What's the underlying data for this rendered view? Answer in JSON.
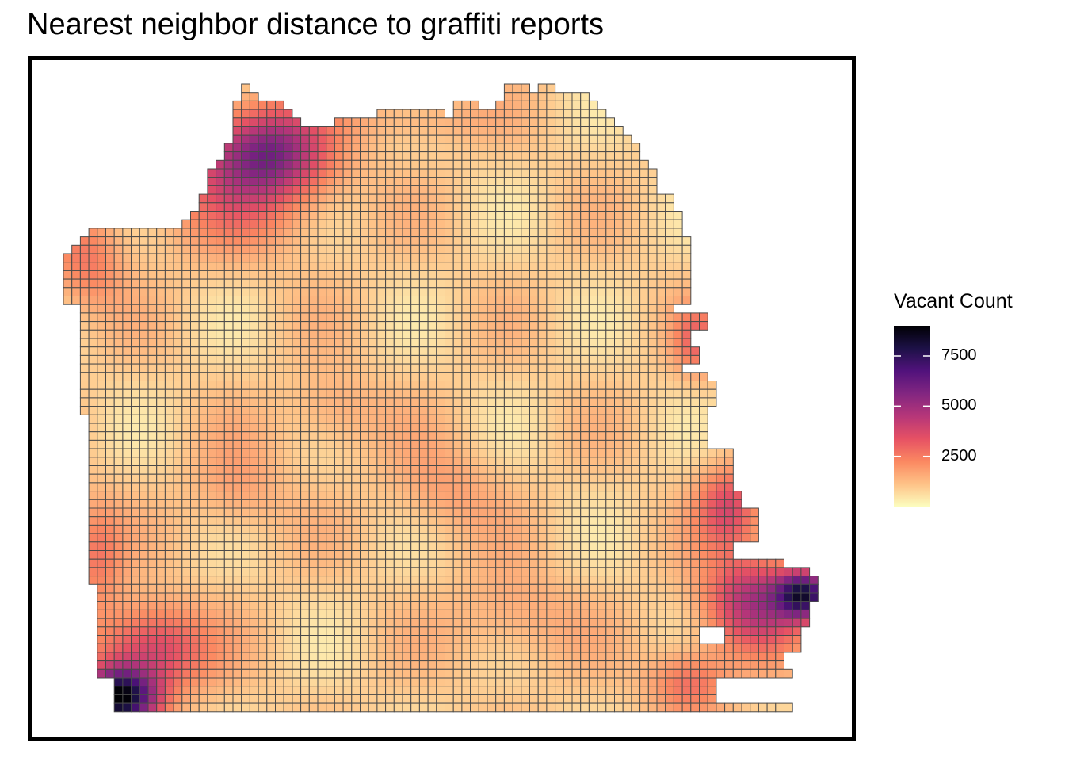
{
  "title": "Nearest neighbor distance to graffiti reports",
  "legend": {
    "title": "Vacant Count",
    "min": 0,
    "max": 9000,
    "ticks": [
      {
        "value": 7500,
        "label": "7500"
      },
      {
        "value": 5000,
        "label": "5000"
      },
      {
        "value": 2500,
        "label": "2500"
      }
    ],
    "colors": [
      "#FCFDBF",
      "#FEC287",
      "#FB8861",
      "#E65164",
      "#B63679",
      "#822681",
      "#51127C",
      "#1D1147",
      "#000004"
    ]
  },
  "map": {
    "type": "fishnet-grid",
    "palette": "magma (reversed)",
    "cell_border_color": "#4a4a4a"
  }
}
